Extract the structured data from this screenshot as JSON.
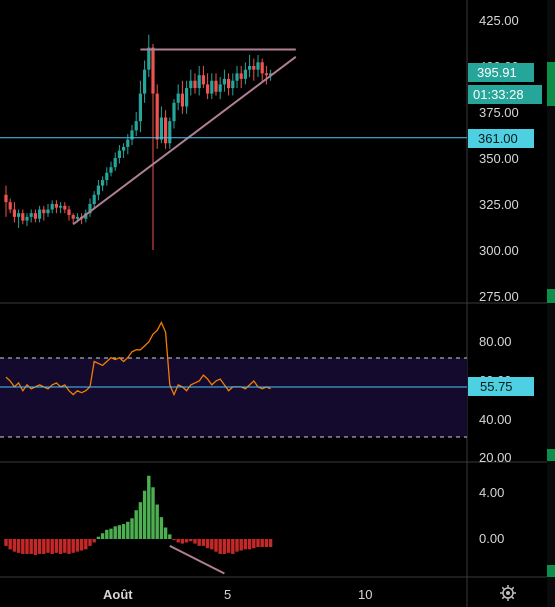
{
  "colors": {
    "background": "#000000",
    "up_candle": "#26a69a",
    "down_candle": "#ef5350",
    "pattern_line": "#b07f95",
    "hline": "#4fc3f7",
    "rsi_line": "#f57c00",
    "rsi_band": "#140a2e",
    "hist_up": "#4caf50",
    "hist_down": "#c62828",
    "price_badge": "#26a69a",
    "hline_badge": "#4dd0e1",
    "pane_border": "#3a3a3a",
    "sidebar_accent": "#0c8f4b"
  },
  "price_axis": {
    "ticks": [
      "425.00",
      "400.00",
      "375.00",
      "350.00",
      "325.00",
      "300.00",
      "275.00"
    ],
    "current_price": "395.91",
    "countdown": "01:33:28",
    "hline_label": "361.00"
  },
  "rsi_axis": {
    "ticks": [
      "80.00",
      "60.00",
      "40.00",
      "20.00"
    ],
    "current": "55.75"
  },
  "macd_axis": {
    "ticks": [
      "4.00",
      "0.00"
    ]
  },
  "time_axis": {
    "labels": [
      "Août",
      "5",
      "10"
    ]
  },
  "settings": {
    "icon": "gear-icon"
  },
  "chart_data": [
    {
      "type": "candlestick",
      "x": [
        1,
        2,
        3,
        4,
        5,
        6,
        7,
        8,
        9,
        10,
        11,
        12,
        13,
        14,
        15,
        16,
        17,
        18,
        19,
        20,
        21,
        22,
        23,
        24,
        25,
        26,
        27,
        28,
        29,
        30,
        31,
        32,
        33,
        34,
        35,
        36,
        37,
        38,
        39,
        40,
        41,
        42,
        43,
        44,
        45,
        46,
        47,
        48,
        49,
        50,
        51,
        52,
        53,
        54,
        55,
        56,
        57,
        58,
        59,
        60,
        61,
        62,
        63,
        64
      ],
      "open": [
        330,
        326,
        322,
        318,
        320,
        316,
        318,
        320,
        317,
        322,
        320,
        322,
        325,
        323,
        324,
        322,
        319,
        317,
        318,
        317,
        320,
        325,
        330,
        335,
        338,
        342,
        345,
        350,
        354,
        356,
        360,
        365,
        370,
        385,
        398,
        410,
        385,
        360,
        372,
        358,
        370,
        380,
        385,
        378,
        388,
        392,
        388,
        395,
        390,
        385,
        392,
        386,
        390,
        393,
        388,
        392,
        396,
        393,
        398,
        400,
        398,
        402,
        396,
        395
      ],
      "close": [
        326,
        322,
        318,
        320,
        316,
        318,
        320,
        317,
        322,
        320,
        322,
        325,
        323,
        324,
        322,
        319,
        317,
        318,
        317,
        320,
        325,
        330,
        335,
        338,
        342,
        345,
        350,
        354,
        356,
        360,
        365,
        370,
        385,
        398,
        410,
        385,
        360,
        372,
        358,
        370,
        380,
        385,
        378,
        388,
        392,
        388,
        395,
        390,
        385,
        392,
        386,
        390,
        393,
        388,
        392,
        396,
        393,
        398,
        400,
        398,
        402,
        396,
        395,
        396
      ],
      "high": [
        335,
        328,
        326,
        322,
        322,
        320,
        322,
        322,
        324,
        324,
        325,
        327,
        327,
        326,
        326,
        324,
        320,
        320,
        320,
        322,
        328,
        332,
        338,
        340,
        345,
        348,
        353,
        357,
        358,
        363,
        368,
        375,
        392,
        403,
        417,
        412,
        390,
        378,
        376,
        372,
        382,
        390,
        392,
        392,
        398,
        396,
        400,
        400,
        396,
        396,
        396,
        394,
        398,
        396,
        396,
        400,
        400,
        402,
        406,
        404,
        406,
        404,
        400,
        398
      ],
      "low": [
        318,
        320,
        315,
        312,
        314,
        313,
        315,
        315,
        315,
        316,
        318,
        320,
        320,
        320,
        320,
        316,
        314,
        315,
        314,
        315,
        318,
        322,
        327,
        332,
        335,
        340,
        343,
        347,
        350,
        352,
        357,
        362,
        364,
        380,
        394,
        300,
        355,
        358,
        355,
        355,
        366,
        376,
        374,
        374,
        384,
        385,
        384,
        388,
        382,
        382,
        384,
        382,
        386,
        384,
        384,
        388,
        388,
        390,
        394,
        392,
        394,
        392,
        390,
        392
      ]
    },
    {
      "type": "line",
      "series": [
        {
          "values": [
            62,
            60,
            57,
            59,
            55,
            58,
            56,
            57,
            58,
            57,
            56,
            58,
            59,
            57,
            58,
            55,
            53,
            55,
            54,
            55,
            57,
            70,
            69,
            68,
            70,
            72,
            71,
            72,
            70,
            72,
            75,
            76,
            76,
            78,
            80,
            84,
            86,
            90,
            85,
            58,
            53,
            58,
            57,
            55,
            58,
            59,
            60,
            63,
            61,
            58,
            60,
            61,
            58,
            55,
            57,
            57,
            57,
            56,
            58,
            60,
            57,
            56,
            57,
            56
          ]
        }
      ],
      "ylim": [
        20,
        92
      ]
    },
    {
      "type": "bar",
      "values": [
        -0.6,
        -0.9,
        -1.1,
        -1.2,
        -1.3,
        -1.3,
        -1.3,
        -1.4,
        -1.3,
        -1.3,
        -1.2,
        -1.3,
        -1.2,
        -1.3,
        -1.2,
        -1.3,
        -1.2,
        -1.1,
        -1.0,
        -0.9,
        -0.6,
        -0.3,
        0.2,
        0.5,
        0.8,
        0.9,
        1.1,
        1.2,
        1.3,
        1.5,
        1.8,
        2.5,
        3.2,
        4.2,
        5.5,
        4.5,
        3.0,
        1.9,
        1.0,
        0.4,
        -0.1,
        -0.3,
        -0.4,
        -0.3,
        -0.2,
        -0.4,
        -0.6,
        -0.6,
        -0.8,
        -0.9,
        -1.1,
        -1.3,
        -1.3,
        -1.2,
        -1.3,
        -1.1,
        -1.0,
        -0.9,
        -0.9,
        -0.8,
        -0.7,
        -0.7,
        -0.7,
        -0.7
      ],
      "ylim": [
        -3.0,
        6.5
      ]
    }
  ],
  "annotations": {
    "triangle_top": {
      "x1": 33,
      "x2": 70,
      "price": 409
    },
    "triangle_bottom": {
      "x1": 17,
      "y1": 314,
      "x2": 70,
      "y2": 405
    },
    "macd_divergence": {
      "x1": 40,
      "y1": -0.6,
      "x2": 53,
      "y2": -3.0
    },
    "horizontal_line": 361
  }
}
